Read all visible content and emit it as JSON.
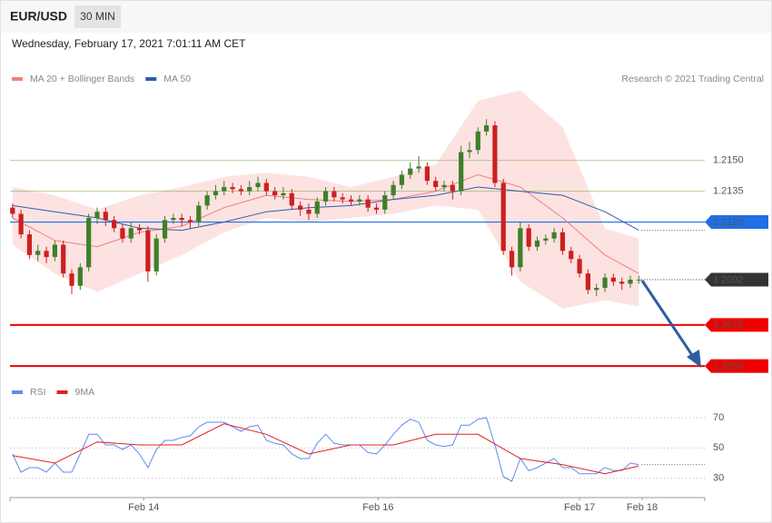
{
  "header": {
    "symbol": "EUR/USD",
    "interval": "30 MIN",
    "timestamp": "Wednesday, February 17, 2021 7:01:11 AM CET",
    "credit": "Research © 2021 Trading Central"
  },
  "chart_data": [
    {
      "type": "candlestick",
      "x": [
        0,
        1,
        2,
        3,
        4,
        5,
        6,
        7,
        8,
        9,
        10,
        11,
        12,
        13,
        14,
        15,
        16,
        17,
        18,
        19,
        20,
        21,
        22,
        23,
        24,
        25,
        26,
        27,
        28,
        29,
        30,
        31,
        32,
        33,
        34,
        35,
        36,
        37,
        38,
        39,
        40,
        41,
        42,
        43,
        44,
        45,
        46,
        47,
        48,
        49,
        50,
        51,
        52,
        53,
        54,
        55,
        56,
        57,
        58,
        59,
        60,
        61,
        62,
        63,
        64,
        65,
        66,
        67,
        68,
        69,
        70,
        71,
        72,
        73,
        74
      ],
      "open": [
        1.2127,
        1.2124,
        1.2114,
        1.2104,
        1.2106,
        1.2103,
        1.2109,
        1.2095,
        1.2089,
        1.2098,
        1.2122,
        1.2125,
        1.2121,
        1.2117,
        1.2112,
        1.2117,
        1.2116,
        1.2096,
        1.2112,
        1.2121,
        1.2122,
        1.2121,
        1.212,
        1.2128,
        1.2133,
        1.2135,
        1.2137,
        1.2136,
        1.2135,
        1.2137,
        1.2139,
        1.2135,
        1.2133,
        1.2134,
        1.2128,
        1.2126,
        1.2124,
        1.213,
        1.2135,
        1.2132,
        1.2131,
        1.213,
        1.2131,
        1.2127,
        1.2126,
        1.2133,
        1.2138,
        1.2143,
        1.2146,
        1.2147,
        1.214,
        1.2137,
        1.2138,
        1.2135,
        1.2154,
        1.2155,
        1.2164,
        1.2167,
        1.2139,
        1.2106,
        1.2098,
        1.2117,
        1.2108,
        1.2111,
        1.2112,
        1.2115,
        1.2106,
        1.2102,
        1.2095,
        1.2087,
        1.2088,
        1.2093,
        1.2091,
        1.209,
        1.2092
      ],
      "high": [
        1.2129,
        1.2126,
        1.2116,
        1.2109,
        1.2108,
        1.2111,
        1.2111,
        1.2097,
        1.21,
        1.2124,
        1.2127,
        1.2127,
        1.2123,
        1.2119,
        1.212,
        1.2119,
        1.2118,
        1.2114,
        1.2123,
        1.2124,
        1.2124,
        1.2123,
        1.213,
        1.2135,
        1.2138,
        1.214,
        1.2139,
        1.2138,
        1.214,
        1.2142,
        1.2141,
        1.2137,
        1.2137,
        1.2136,
        1.213,
        1.2129,
        1.2132,
        1.2137,
        1.2137,
        1.2134,
        1.2133,
        1.2133,
        1.2133,
        1.2129,
        1.2135,
        1.214,
        1.2145,
        1.2149,
        1.2152,
        1.2149,
        1.2142,
        1.214,
        1.214,
        1.2157,
        1.2159,
        1.2166,
        1.217,
        1.2169,
        1.2141,
        1.2108,
        1.212,
        1.2119,
        1.2113,
        1.2114,
        1.2117,
        1.2117,
        1.2108,
        1.2104,
        1.2097,
        1.209,
        1.2095,
        1.2095,
        1.2093,
        1.2094,
        1.2094
      ],
      "low": [
        1.2122,
        1.2112,
        1.2102,
        1.2101,
        1.21,
        1.2101,
        1.2093,
        1.2085,
        1.2087,
        1.2096,
        1.2119,
        1.2118,
        1.2115,
        1.211,
        1.211,
        1.2114,
        1.2091,
        1.2094,
        1.211,
        1.2119,
        1.2118,
        1.2117,
        1.2118,
        1.2126,
        1.2131,
        1.2133,
        1.2134,
        1.2133,
        1.2133,
        1.2135,
        1.2133,
        1.2131,
        1.2131,
        1.2126,
        1.2123,
        1.2121,
        1.2122,
        1.2128,
        1.213,
        1.2129,
        1.2128,
        1.2128,
        1.2125,
        1.2124,
        1.2124,
        1.2131,
        1.2136,
        1.2141,
        1.2144,
        1.2138,
        1.2135,
        1.2135,
        1.2131,
        1.2133,
        1.2151,
        1.2153,
        1.2162,
        1.2137,
        1.2104,
        1.2094,
        1.2096,
        1.2106,
        1.2106,
        1.2109,
        1.211,
        1.2104,
        1.21,
        1.2093,
        1.2085,
        1.2084,
        1.2086,
        1.2089,
        1.2087,
        1.2088,
        1.209
      ],
      "close": [
        1.2124,
        1.2114,
        1.2104,
        1.2106,
        1.2103,
        1.2109,
        1.2095,
        1.2089,
        1.2098,
        1.2122,
        1.2125,
        1.2121,
        1.2117,
        1.2112,
        1.2117,
        1.2116,
        1.2096,
        1.2112,
        1.2121,
        1.2122,
        1.2121,
        1.212,
        1.2128,
        1.2133,
        1.2135,
        1.2137,
        1.2136,
        1.2135,
        1.2137,
        1.2139,
        1.2135,
        1.2133,
        1.2134,
        1.2128,
        1.2126,
        1.2124,
        1.213,
        1.2135,
        1.2132,
        1.2131,
        1.213,
        1.2131,
        1.2127,
        1.2126,
        1.2133,
        1.2138,
        1.2143,
        1.2146,
        1.2147,
        1.214,
        1.2137,
        1.2138,
        1.2135,
        1.2154,
        1.2155,
        1.2164,
        1.2167,
        1.2139,
        1.2106,
        1.2098,
        1.2117,
        1.2108,
        1.2111,
        1.2112,
        1.2115,
        1.2106,
        1.2102,
        1.2095,
        1.2087,
        1.2088,
        1.2093,
        1.2091,
        1.209,
        1.2092,
        1.2092
      ],
      "up_color": "#3f7f2a",
      "down_color": "#cc2020",
      "xlim": [
        -0.3,
        81.8
      ],
      "ylim": [
        1.2043,
        1.2186
      ],
      "overlays": [
        {
          "name": "MA 20 + Bollinger Bands",
          "color": "#f08080",
          "band_color": "#fde2e2",
          "x": [
            0,
            5,
            10,
            15,
            20,
            25,
            30,
            35,
            40,
            45,
            50,
            55,
            60,
            65,
            70,
            74
          ],
          "values": [
            1.2122,
            1.2111,
            1.2108,
            1.2115,
            1.2118,
            1.2127,
            1.2133,
            1.2131,
            1.213,
            1.2131,
            1.2135,
            1.2143,
            1.2137,
            1.2122,
            1.2104,
            1.2095
          ],
          "upper": [
            1.2137,
            1.2133,
            1.2126,
            1.2133,
            1.2137,
            1.2142,
            1.2144,
            1.2142,
            1.2137,
            1.2142,
            1.2148,
            1.2179,
            1.2184,
            1.2166,
            1.2117,
            1.2112
          ],
          "lower": [
            1.2109,
            1.2095,
            1.2086,
            1.2095,
            1.2104,
            1.2115,
            1.2122,
            1.212,
            1.2122,
            1.2124,
            1.2128,
            1.2126,
            1.2091,
            1.2078,
            1.2082,
            1.2079
          ]
        },
        {
          "name": "MA 50",
          "color": "#2d5ea8",
          "x": [
            0,
            5,
            10,
            15,
            20,
            25,
            30,
            35,
            40,
            45,
            50,
            55,
            60,
            65,
            70,
            74
          ],
          "values": [
            1.2128,
            1.2125,
            1.2122,
            1.2117,
            1.2116,
            1.212,
            1.2125,
            1.2127,
            1.2128,
            1.2131,
            1.2133,
            1.2137,
            1.2135,
            1.2133,
            1.2125,
            1.2116
          ]
        }
      ],
      "levels": [
        {
          "value": 1.215,
          "label": "1.2150",
          "color": "#6a9a2a",
          "style": "line"
        },
        {
          "value": 1.2135,
          "label": "1.2135",
          "color": "#6a9a2a",
          "style": "line"
        },
        {
          "value": 1.212,
          "label": "1.2120",
          "color": "#1f6fe6",
          "style": "tag"
        },
        {
          "value": 1.2092,
          "label": "1.2092",
          "color": "#333333",
          "style": "price"
        },
        {
          "value": 1.207,
          "label": "1.2070",
          "color": "#ee0000",
          "style": "tag"
        },
        {
          "value": 1.205,
          "label": "1.2050",
          "color": "#ee0000",
          "style": "tag"
        }
      ]
    },
    {
      "type": "line",
      "series": [
        {
          "name": "RSI",
          "color": "#5b8def",
          "x": [
            0,
            1,
            2,
            3,
            4,
            5,
            6,
            7,
            8,
            9,
            10,
            11,
            12,
            13,
            14,
            15,
            16,
            17,
            18,
            19,
            20,
            21,
            22,
            23,
            24,
            25,
            26,
            27,
            28,
            29,
            30,
            31,
            32,
            33,
            34,
            35,
            36,
            37,
            38,
            39,
            40,
            41,
            42,
            43,
            44,
            45,
            46,
            47,
            48,
            49,
            50,
            51,
            52,
            53,
            54,
            55,
            56,
            57,
            58,
            59,
            60,
            61,
            62,
            63,
            64,
            65,
            66,
            67,
            68,
            69,
            70,
            71,
            72,
            73,
            74
          ],
          "values": [
            46,
            34,
            37,
            37,
            34,
            40,
            34,
            34,
            46,
            59,
            59,
            52,
            52,
            49,
            52,
            46,
            37,
            49,
            55,
            55,
            57,
            58,
            64,
            67,
            67,
            67,
            64,
            61,
            64,
            65,
            55,
            53,
            52,
            46,
            43,
            43,
            53,
            59,
            53,
            52,
            52,
            52,
            47,
            46,
            52,
            59,
            65,
            69,
            67,
            55,
            52,
            51,
            52,
            65,
            65,
            69,
            70,
            52,
            31,
            28,
            43,
            35,
            37,
            40,
            43,
            37,
            37,
            33,
            33,
            33,
            37,
            35,
            35,
            40,
            39
          ]
        },
        {
          "name": "9MA",
          "color": "#e02020",
          "x": [
            0,
            5,
            10,
            15,
            20,
            25,
            30,
            35,
            40,
            45,
            50,
            55,
            60,
            65,
            70,
            74
          ],
          "values": [
            45,
            40,
            54,
            52,
            52,
            66,
            59,
            46,
            52,
            52,
            59,
            59,
            43,
            39,
            33,
            38
          ]
        }
      ],
      "xlim": [
        -0.3,
        81.8
      ],
      "ylim": [
        22,
        76
      ],
      "yticks": [
        30,
        50,
        70
      ],
      "grid": true,
      "xticks": [
        {
          "value": 15.5,
          "label": "Feb 14"
        },
        {
          "value": 43.2,
          "label": "Feb 16"
        },
        {
          "value": 67.0,
          "label": "Feb 17"
        },
        {
          "value": 74.4,
          "label": "Feb 18"
        }
      ]
    }
  ]
}
